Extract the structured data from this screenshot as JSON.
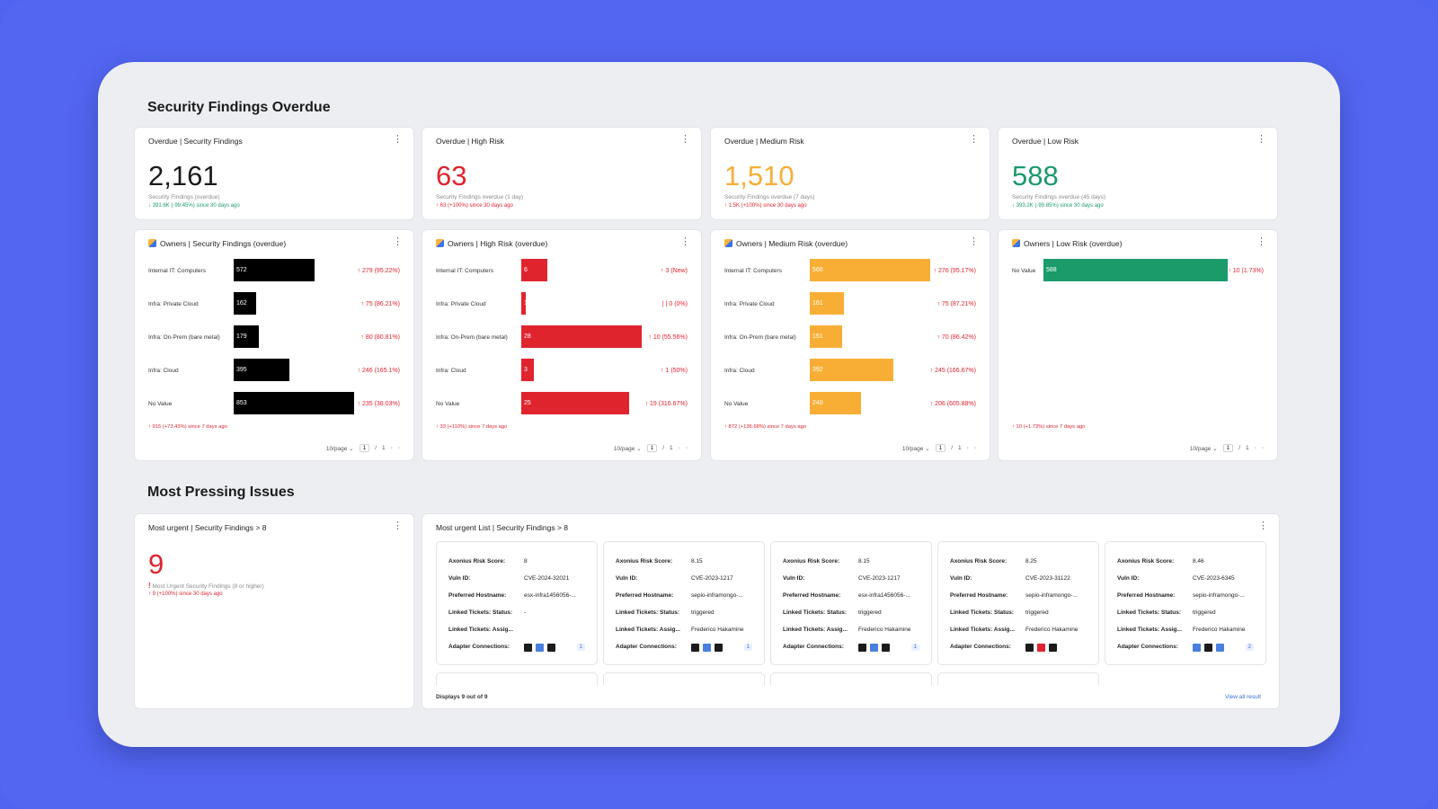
{
  "sections": {
    "overdue_title": "Security Findings Overdue",
    "pressing_title": "Most Pressing Issues"
  },
  "kpis": [
    {
      "title": "Overdue | Security Findings",
      "value": "2,161",
      "subtitle": "Security Findings (overdue)",
      "delta": "↓ 391.6K (-99.45%) since 30 days ago",
      "color": "#1b1b1b",
      "delta_color": "#1a9b69"
    },
    {
      "title": "Overdue | High Risk",
      "value": "63",
      "subtitle": "Security Findings overdue (1 day)",
      "delta": "↑ 63 (+100%) since 30 days ago",
      "color": "#e0242e",
      "delta_color": "#e0242e"
    },
    {
      "title": "Overdue | Medium Risk",
      "value": "1,510",
      "subtitle": "Security Findings overdue (7 days)",
      "delta": "↑ 1.5K (+100%) since 30 days ago",
      "color": "#f8ae35",
      "delta_color": "#e0242e"
    },
    {
      "title": "Overdue | Low Risk",
      "value": "588",
      "subtitle": "Security Findings overdue (45 days)",
      "delta": "↓ 393.2K (-99.85%) since 30 days ago",
      "color": "#1a9b69",
      "delta_color": "#1a9b69"
    }
  ],
  "owners": [
    {
      "title": "Owners | Security Findings (overdue)",
      "bar_color": "#000000",
      "max": 853,
      "rows": [
        {
          "label": "Internal IT: Computers",
          "value": 572,
          "delta": "↑ 279 (95.22%)"
        },
        {
          "label": "Infra: Private Cloud",
          "value": 162,
          "delta": "↑ 75 (86.21%)"
        },
        {
          "label": "Infra: On-Prem (bare metal)",
          "value": 179,
          "delta": "↑ 80 (80.81%)"
        },
        {
          "label": "Infra: Cloud",
          "value": 395,
          "delta": "↑ 246 (165.1%)"
        },
        {
          "label": "No Value",
          "value": 853,
          "delta": "↑ 235 (38.03%)"
        }
      ],
      "footnote": "↑ 915 (+73.43%) since 7 days ago",
      "pager": {
        "per_page": "10/page",
        "page": "1",
        "sep": "/",
        "total": "1"
      }
    },
    {
      "title": "Owners | High Risk (overdue)",
      "bar_color": "#e0242e",
      "max": 28,
      "rows": [
        {
          "label": "Internal IT: Computers",
          "value": 6,
          "delta": "↑ 3 (New)"
        },
        {
          "label": "Infra: Private Cloud",
          "value": 1,
          "delta": "| | 0 (0%)"
        },
        {
          "label": "Infra: On-Prem (bare metal)",
          "value": 28,
          "delta": "↑ 10 (55.56%)"
        },
        {
          "label": "Infra: Cloud",
          "value": 3,
          "delta": "↑ 1 (50%)"
        },
        {
          "label": "No Value",
          "value": 25,
          "delta": "↑ 19 (316.67%)"
        }
      ],
      "footnote": "↑ 33 (+110%) since 7 days ago",
      "pager": {
        "per_page": "10/page",
        "page": "1",
        "sep": "/",
        "total": "1"
      }
    },
    {
      "title": "Owners | Medium Risk (overdue)",
      "bar_color": "#f8ae35",
      "max": 566,
      "rows": [
        {
          "label": "Internal IT: Computers",
          "value": 566,
          "delta": "↑ 276 (95.17%)"
        },
        {
          "label": "Infra: Private Cloud",
          "value": 161,
          "delta": "↑ 75 (87.21%)"
        },
        {
          "label": "Infra: On-Prem (bare metal)",
          "value": 151,
          "delta": "↑ 70 (86.42%)"
        },
        {
          "label": "Infra: Cloud",
          "value": 392,
          "delta": "↑ 245 (166.67%)"
        },
        {
          "label": "No Value",
          "value": 240,
          "delta": "↑ 206 (605.88%)"
        }
      ],
      "footnote": "↑ 872 (+136.68%) since 7 days ago",
      "pager": {
        "per_page": "10/page",
        "page": "1",
        "sep": "/",
        "total": "1"
      }
    },
    {
      "title": "Owners | Low Risk (overdue)",
      "bar_color": "#1a9b69",
      "max": 588,
      "rows": [
        {
          "label": "No Value",
          "value": 588,
          "delta": "↑ 10 (1.73%)"
        }
      ],
      "footnote": "↑ 10 (+1.73%) since 7 days ago",
      "pager": {
        "per_page": "10/page",
        "page": "1",
        "sep": "/",
        "total": "1"
      }
    }
  ],
  "most_urgent": {
    "title": "Most urgent | Security Findings > 8",
    "value": "9",
    "subtitle": "Most Urgent Security Findings (8 or higher)",
    "delta": "↑ 9 (+100%) since 30 days ago"
  },
  "urgent_list": {
    "title": "Most urgent List | Security Findings > 8",
    "keys": [
      "Axonius Risk Score:",
      "Vuln ID:",
      "Preferred Hostname:",
      "Linked Tickets: Status:",
      "Linked Tickets: Assig...",
      "Adapter Connections:"
    ],
    "items": [
      {
        "score": "8",
        "vuln": "CVE-2024-32021",
        "host": "esx-infra1456056-...",
        "status": "-",
        "assignee": "",
        "count": "1",
        "icons": [
          "#1b1b1b",
          "#4a7fe0",
          "#1b1b1b"
        ]
      },
      {
        "score": "8.15",
        "vuln": "CVE-2023-1217",
        "host": "sepio-inframongo-...",
        "status": "triggered",
        "assignee": "Frederico Hakamine",
        "count": "1",
        "icons": [
          "#1b1b1b",
          "#4a7fe0",
          "#1b1b1b"
        ]
      },
      {
        "score": "8.15",
        "vuln": "CVE-2023-1217",
        "host": "esx-infra1456056-...",
        "status": "triggered",
        "assignee": "Frederico Hakamine",
        "count": "1",
        "icons": [
          "#1b1b1b",
          "#4a7fe0",
          "#1b1b1b"
        ]
      },
      {
        "score": "8.25",
        "vuln": "CVE-2023-31122",
        "host": "sepio-inframongo-...",
        "status": "triggered",
        "assignee": "Frederico Hakamine",
        "count": "",
        "icons": [
          "#1b1b1b",
          "#e0242e",
          "#1b1b1b"
        ]
      },
      {
        "score": "8.46",
        "vuln": "CVE-2023-6345",
        "host": "sepio-inframongo-...",
        "status": "triggered",
        "assignee": "Frederico Hakamine",
        "count": "2",
        "icons": [
          "#4a7fe0",
          "#1b1b1b",
          "#4a7fe0"
        ]
      }
    ],
    "footer": "Displays 9 out of 9",
    "view_all": "View all result"
  }
}
